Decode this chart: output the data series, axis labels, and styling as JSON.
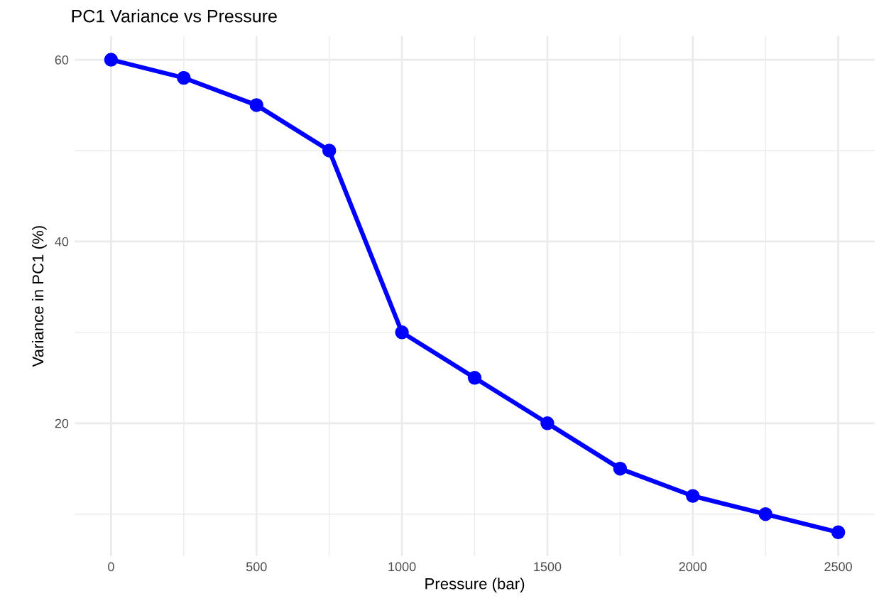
{
  "chart_data": {
    "type": "line",
    "title": "PC1 Variance vs Pressure",
    "xlabel": "Pressure (bar)",
    "ylabel": "Variance in PC1 (%)",
    "x": [
      0,
      250,
      500,
      750,
      1000,
      1250,
      1500,
      1750,
      2000,
      2250,
      2500
    ],
    "series": [
      {
        "color": "#0000ff",
        "values": [
          60,
          58,
          55,
          50,
          30,
          25,
          20,
          15,
          12,
          10,
          8
        ]
      }
    ],
    "xlim": [
      -125,
      2625
    ],
    "ylim": [
      5.4,
      62.6
    ],
    "xticks": [
      0,
      500,
      1000,
      1500,
      2000,
      2500
    ],
    "yticks": [
      20,
      40,
      60
    ],
    "grid": true,
    "marker": "circle",
    "line_style": "solid"
  }
}
